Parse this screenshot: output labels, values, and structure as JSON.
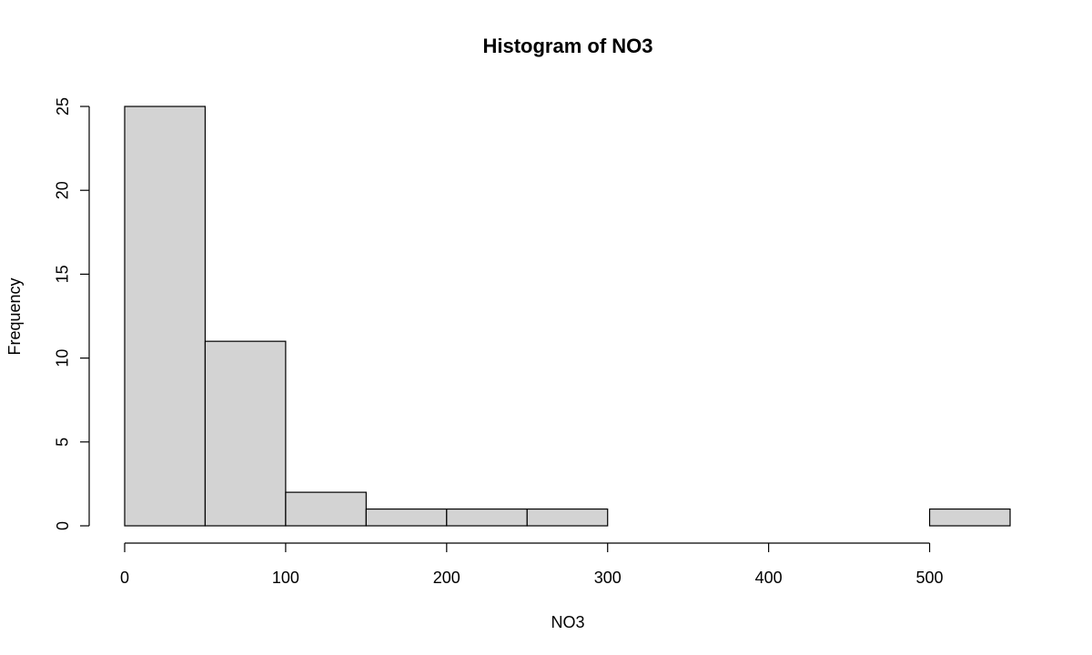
{
  "chart_data": {
    "type": "bar",
    "title": "Histogram of NO3",
    "xlabel": "NO3",
    "ylabel": "Frequency",
    "bins": [
      {
        "start": 0,
        "end": 50,
        "count": 25
      },
      {
        "start": 50,
        "end": 100,
        "count": 11
      },
      {
        "start": 100,
        "end": 150,
        "count": 2
      },
      {
        "start": 150,
        "end": 200,
        "count": 1
      },
      {
        "start": 200,
        "end": 250,
        "count": 1
      },
      {
        "start": 250,
        "end": 300,
        "count": 1
      },
      {
        "start": 300,
        "end": 350,
        "count": 0
      },
      {
        "start": 350,
        "end": 400,
        "count": 0
      },
      {
        "start": 400,
        "end": 450,
        "count": 0
      },
      {
        "start": 450,
        "end": 500,
        "count": 0
      },
      {
        "start": 500,
        "end": 550,
        "count": 1
      }
    ],
    "xlim": [
      0,
      550
    ],
    "ylim": [
      0,
      25
    ],
    "x_ticks": [
      0,
      100,
      200,
      300,
      400,
      500
    ],
    "y_ticks": [
      0,
      5,
      10,
      15,
      20,
      25
    ],
    "bar_color": "#d3d3d3",
    "border_color": "#000000",
    "grid": false,
    "legend": "none"
  }
}
